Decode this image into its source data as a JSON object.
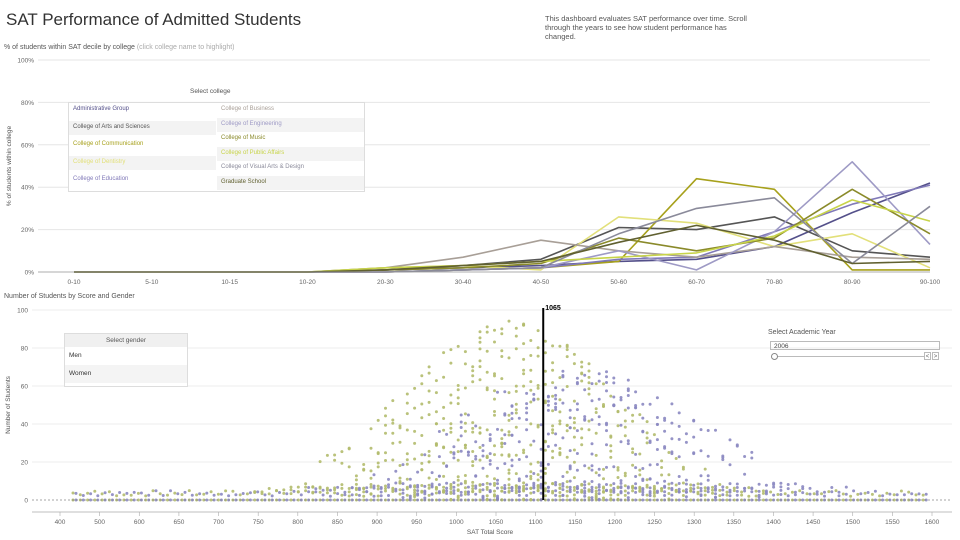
{
  "header": {
    "title": "SAT Performance of Admitted Students",
    "description": "This dashboard evaluates SAT performance over time. Scroll through the years to see how student performance has changed.",
    "top_subtitle": "% of students within SAT decile by college",
    "top_subtitle_hint": "(click college name to highlight)",
    "bottom_subtitle": "Number of Students by Score and Gender"
  },
  "college_legend": {
    "title": "Select college",
    "items": [
      {
        "label": "Administrative Group",
        "color": "#54508a"
      },
      {
        "label": "College of Arts and Sciences",
        "color": "#555555"
      },
      {
        "label": "College of Communication",
        "color": "#a7a11c"
      },
      {
        "label": "College of Dentistry",
        "color": "#e2e07a"
      },
      {
        "label": "College of Education",
        "color": "#8079b8"
      },
      {
        "label": "College of Business",
        "color": "#a89f97"
      },
      {
        "label": "College of Engineering",
        "color": "#9e9ac5"
      },
      {
        "label": "College of Music",
        "color": "#8a8a2a"
      },
      {
        "label": "College of Public Affairs",
        "color": "#c8d44a"
      },
      {
        "label": "College of Visual Arts & Design",
        "color": "#8a8a9a"
      },
      {
        "label": "Graduate School",
        "color": "#606030"
      }
    ]
  },
  "gender_legend": {
    "title": "Select gender",
    "items": [
      {
        "label": "Men",
        "color": "#8b88c1"
      },
      {
        "label": "Women",
        "color": "#b3bb6d"
      }
    ]
  },
  "year_control": {
    "label": "Select Academic Year",
    "value": "2006",
    "prev_label": "<",
    "next_label": ">"
  },
  "chart_data": [
    {
      "type": "line",
      "title": "% of students within SAT decile by college",
      "xlabel": "",
      "ylabel": "% of students within college",
      "categories": [
        "0-10",
        "5-10",
        "10-15",
        "10-20",
        "20-30",
        "30-40",
        "40-50",
        "50-60",
        "60-70",
        "70-80",
        "80-90",
        "90-100"
      ],
      "y_ticks": [
        "0%",
        "20%",
        "40%",
        "60%",
        "80%",
        "100%"
      ],
      "ylim": [
        0,
        100
      ],
      "grid": true,
      "series": [
        {
          "name": "Administrative Group",
          "color": "#54508a",
          "values": [
            0,
            0,
            0,
            0,
            1,
            2,
            3,
            5,
            6,
            12,
            28,
            42
          ]
        },
        {
          "name": "College of Arts and Sciences",
          "color": "#555555",
          "values": [
            0,
            0,
            0,
            0,
            1,
            3,
            6,
            21,
            20,
            26,
            10,
            7
          ]
        },
        {
          "name": "College of Communication",
          "color": "#a7a11c",
          "values": [
            0,
            0,
            0,
            0,
            0,
            1,
            2,
            5,
            44,
            39,
            1,
            1
          ]
        },
        {
          "name": "College of Dentistry",
          "color": "#e2e07a",
          "values": [
            0,
            0,
            0,
            0,
            2,
            3,
            1,
            26,
            23,
            12,
            18,
            2
          ]
        },
        {
          "name": "College of Education",
          "color": "#8079b8",
          "values": [
            0,
            0,
            0,
            0,
            0,
            1,
            2,
            6,
            7,
            19,
            32,
            41
          ]
        },
        {
          "name": "College of Business",
          "color": "#a89f97",
          "values": [
            0,
            0,
            0,
            0,
            2,
            7,
            15,
            10,
            7,
            12,
            7,
            6
          ]
        },
        {
          "name": "College of Engineering",
          "color": "#9e9ac5",
          "values": [
            0,
            0,
            0,
            0,
            0,
            1,
            2,
            10,
            1,
            19,
            52,
            13
          ]
        },
        {
          "name": "College of Music",
          "color": "#8a8a2a",
          "values": [
            0,
            0,
            0,
            0,
            1,
            2,
            4,
            16,
            10,
            16,
            39,
            18
          ]
        },
        {
          "name": "College of Public Affairs",
          "color": "#c8d44a",
          "values": [
            0,
            0,
            0,
            0,
            2,
            3,
            5,
            7,
            9,
            17,
            34,
            24
          ]
        },
        {
          "name": "College of Visual Arts & Design",
          "color": "#8a8a9a",
          "values": [
            0,
            0,
            0,
            0,
            0,
            1,
            2,
            18,
            30,
            35,
            4,
            31
          ]
        },
        {
          "name": "Graduate School",
          "color": "#606030",
          "values": [
            0,
            0,
            0,
            0,
            1,
            3,
            5,
            14,
            22,
            15,
            4,
            5
          ]
        }
      ]
    },
    {
      "type": "scatter",
      "title": "Number of Students by Score and Gender",
      "xlabel": "SAT Total Score",
      "ylabel": "Number of Students",
      "xlim": [
        400,
        1600
      ],
      "ylim": [
        0,
        100
      ],
      "x_ticks": [
        "400",
        "500",
        "600",
        "650",
        "700",
        "750",
        "800",
        "850",
        "900",
        "950",
        "1000",
        "1050",
        "1100",
        "1150",
        "1200",
        "1250",
        "1300",
        "1350",
        "1400",
        "1450",
        "1500",
        "1550",
        "1600"
      ],
      "y_ticks": [
        "0",
        "20",
        "40",
        "60",
        "80",
        "100"
      ],
      "reference_line": {
        "value": 1065,
        "label": "1065"
      },
      "series": [
        {
          "name": "Men",
          "color": "#8b88c1"
        },
        {
          "name": "Women",
          "color": "#b3bb6d"
        }
      ]
    }
  ]
}
